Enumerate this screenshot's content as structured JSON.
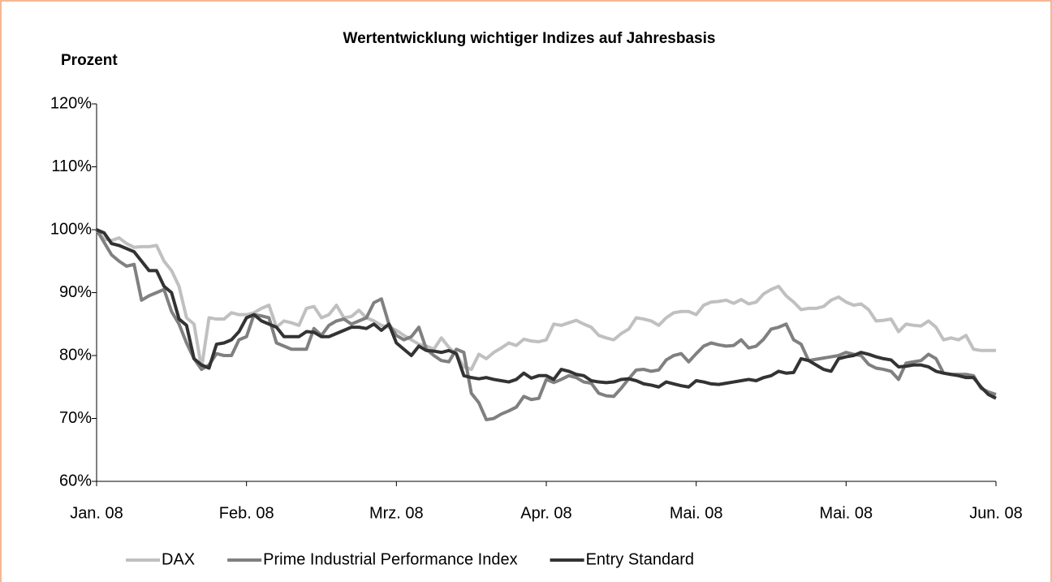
{
  "chart_data": {
    "type": "line",
    "title": "Wertentwicklung wichtiger Indizes auf Jahresbasis",
    "y_label": "Prozent",
    "categories": [
      "Jan. 08",
      null,
      null,
      null,
      null,
      null,
      null,
      null,
      null,
      null,
      null,
      null,
      null,
      null,
      null,
      null,
      null,
      null,
      null,
      null,
      "Feb. 08",
      null,
      null,
      null,
      null,
      null,
      null,
      null,
      null,
      null,
      null,
      null,
      null,
      null,
      null,
      null,
      null,
      null,
      null,
      null,
      "Mrz. 08",
      null,
      null,
      null,
      null,
      null,
      null,
      null,
      null,
      null,
      null,
      null,
      null,
      null,
      null,
      null,
      null,
      null,
      null,
      null,
      "Apr. 08",
      null,
      null,
      null,
      null,
      null,
      null,
      null,
      null,
      null,
      null,
      null,
      null,
      null,
      null,
      null,
      null,
      null,
      null,
      null,
      "Mai. 08",
      null,
      null,
      null,
      null,
      null,
      null,
      null,
      null,
      null,
      null,
      null,
      null,
      null,
      null,
      null,
      null,
      null,
      null,
      null,
      "Mai. 08",
      null,
      null,
      null,
      null,
      null,
      null,
      null,
      null,
      null,
      null,
      null,
      null,
      null,
      null,
      null,
      null,
      null,
      null,
      null,
      "Jun. 08"
    ],
    "series": [
      {
        "name": "DAX",
        "color": "#c0c0c0",
        "values": [
          100,
          98.5,
          98.3,
          98.7,
          97.8,
          97.2,
          97.3,
          97.3,
          97.5,
          95,
          93.5,
          91,
          86,
          85,
          78,
          86,
          85.8,
          85.8,
          86.8,
          86.5,
          86.5,
          86.8,
          87.5,
          88,
          84.5,
          85.5,
          85.2,
          84.8,
          87.5,
          87.8,
          86,
          86.5,
          88,
          86,
          86.2,
          87.2,
          86,
          85.5,
          84.8,
          84.5,
          84,
          83.2,
          82.5,
          81.8,
          81.5,
          81,
          82.8,
          81.3,
          80.2,
          78.2,
          77.8,
          80.2,
          79.5,
          80.5,
          81.2,
          82,
          81.6,
          82.6,
          82.3,
          82.2,
          82.5,
          85,
          84.8,
          85.2,
          85.6,
          85,
          84.5,
          83.2,
          82.8,
          82.5,
          83.5,
          84.2,
          86,
          85.8,
          85.5,
          84.8,
          86,
          86.8,
          87,
          87,
          86.5,
          88,
          88.5,
          88.6,
          88.8,
          88.3,
          88.9,
          88.2,
          88.5,
          89.8,
          90.5,
          91,
          89.5,
          88.5,
          87.3,
          87.5,
          87.5,
          87.8,
          88.8,
          89.3,
          88.5,
          88,
          88.2,
          87.3,
          85.5,
          85.6,
          85.8,
          83.8,
          85,
          84.8,
          84.7,
          85.5,
          84.5,
          82.5,
          82.8,
          82.5,
          83.2,
          81,
          80.8,
          80.8,
          80.8
        ]
      },
      {
        "name": "Prime Industrial Performance Index",
        "color": "#808080",
        "values": [
          100,
          98,
          96,
          95,
          94.2,
          94.5,
          88.8,
          89.5,
          90,
          90.5,
          87,
          85,
          82,
          79.5,
          77.8,
          78.5,
          80.3,
          80,
          80,
          82.5,
          83,
          86.5,
          86.3,
          86,
          82,
          81.5,
          81,
          81,
          81,
          84.3,
          83.2,
          84.8,
          85.5,
          85.8,
          85,
          85.5,
          86,
          88.4,
          89,
          85,
          83.2,
          82.5,
          83,
          84.5,
          81,
          80,
          79.2,
          79,
          81,
          80.5,
          74,
          72.5,
          69.8,
          70,
          70.7,
          71.2,
          71.8,
          73.5,
          73,
          73.2,
          76.2,
          75.7,
          76.2,
          76.8,
          76.5,
          75.8,
          75.6,
          74,
          73.6,
          73.5,
          74.8,
          76.3,
          77.7,
          77.8,
          77.5,
          77.7,
          79.3,
          80,
          80.3,
          79,
          80.3,
          81.5,
          82,
          81.7,
          81.5,
          81.6,
          82.5,
          81.2,
          81.5,
          82.6,
          84.2,
          84.5,
          85,
          82.5,
          81.8,
          79.2,
          79.4,
          79.6,
          79.8,
          80,
          80.5,
          80.2,
          80,
          78.6,
          78,
          77.8,
          77.5,
          76.2,
          78.8,
          79,
          79.2,
          80.2,
          79.5,
          77.2,
          77,
          77,
          77,
          76.8,
          74.8,
          74.2,
          73.8
        ]
      },
      {
        "name": "Entry Standard",
        "color": "#333333",
        "values": [
          100,
          99.5,
          97.8,
          97.5,
          97,
          96.5,
          95,
          93.5,
          93.5,
          91,
          90,
          85.8,
          84.8,
          79.5,
          78.5,
          78,
          81.8,
          82,
          82.5,
          83.8,
          86,
          86.5,
          85.5,
          85,
          84.5,
          83,
          83,
          83,
          83.8,
          83.7,
          83,
          83,
          83.5,
          84,
          84.5,
          84.5,
          84.3,
          85,
          84,
          85,
          82,
          81,
          80,
          81.5,
          80.8,
          80.7,
          80.5,
          80.8,
          80.3,
          76.8,
          76.5,
          76.3,
          76.5,
          76.2,
          76,
          75.8,
          76.2,
          77.2,
          76.4,
          76.8,
          76.8,
          76.2,
          77.8,
          77.5,
          77,
          76.8,
          76,
          75.8,
          75.7,
          75.8,
          76.2,
          76.3,
          76,
          75.5,
          75.3,
          75,
          75.8,
          75.5,
          75.2,
          75,
          76,
          75.8,
          75.5,
          75.4,
          75.6,
          75.8,
          76,
          76.2,
          76,
          76.5,
          76.8,
          77.5,
          77.2,
          77.3,
          79.5,
          79.2,
          78.5,
          77.8,
          77.5,
          79.5,
          79.8,
          80,
          80.5,
          80.2,
          79.8,
          79.5,
          79.3,
          78.2,
          78.3,
          78.5,
          78.5,
          78.2,
          77.5,
          77.2,
          77,
          76.8,
          76.5,
          76.5,
          75,
          73.8,
          73.2
        ]
      }
    ],
    "ylim": [
      60,
      120
    ],
    "yticks": [
      {
        "value": 60,
        "label": "60%"
      },
      {
        "value": 70,
        "label": "70%"
      },
      {
        "value": 80,
        "label": "80%"
      },
      {
        "value": 90,
        "label": "90%"
      },
      {
        "value": 100,
        "label": "100%"
      },
      {
        "value": 110,
        "label": "110%"
      },
      {
        "value": 120,
        "label": "120%"
      }
    ],
    "grid": false,
    "legend": "bottom"
  }
}
